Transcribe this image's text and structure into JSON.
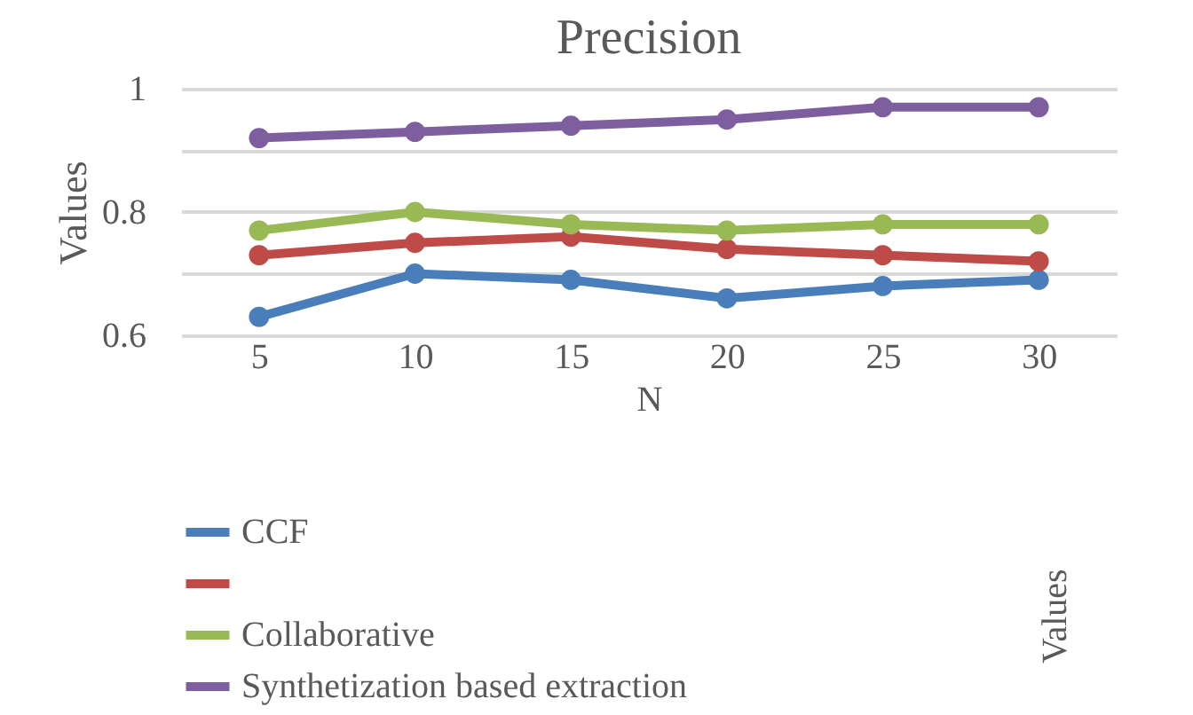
{
  "chart_data": {
    "type": "line",
    "title": "Precision",
    "xlabel": "N",
    "ylabel": "Values",
    "annotations": [
      "Values"
    ],
    "categories": [
      "5",
      "10",
      "15",
      "20",
      "25",
      "30"
    ],
    "series": [
      {
        "name": "CCF",
        "color": "#4a7ebb",
        "values": [
          0.63,
          0.7,
          0.69,
          0.66,
          0.68,
          0.69
        ]
      },
      {
        "color": "#be4b48",
        "values": [
          0.73,
          0.75,
          0.76,
          0.74,
          0.73,
          0.72
        ]
      },
      {
        "name": "Collaborative",
        "color": "#98b954",
        "values": [
          0.77,
          0.8,
          0.78,
          0.77,
          0.78,
          0.78
        ]
      },
      {
        "name": "Synthetization based extraction",
        "color": "#7d5fa0",
        "values": [
          0.92,
          0.93,
          0.94,
          0.95,
          0.97,
          0.97
        ]
      }
    ],
    "ylim": [
      0.6,
      1
    ],
    "yticks": [
      0.6,
      {
        "value": 0.7,
        "label": null
      },
      0.8,
      {
        "value": 0.9,
        "label": null
      },
      1
    ],
    "grid": "y",
    "legend": "bottom",
    "marker": "circle",
    "line_style": "solid"
  }
}
